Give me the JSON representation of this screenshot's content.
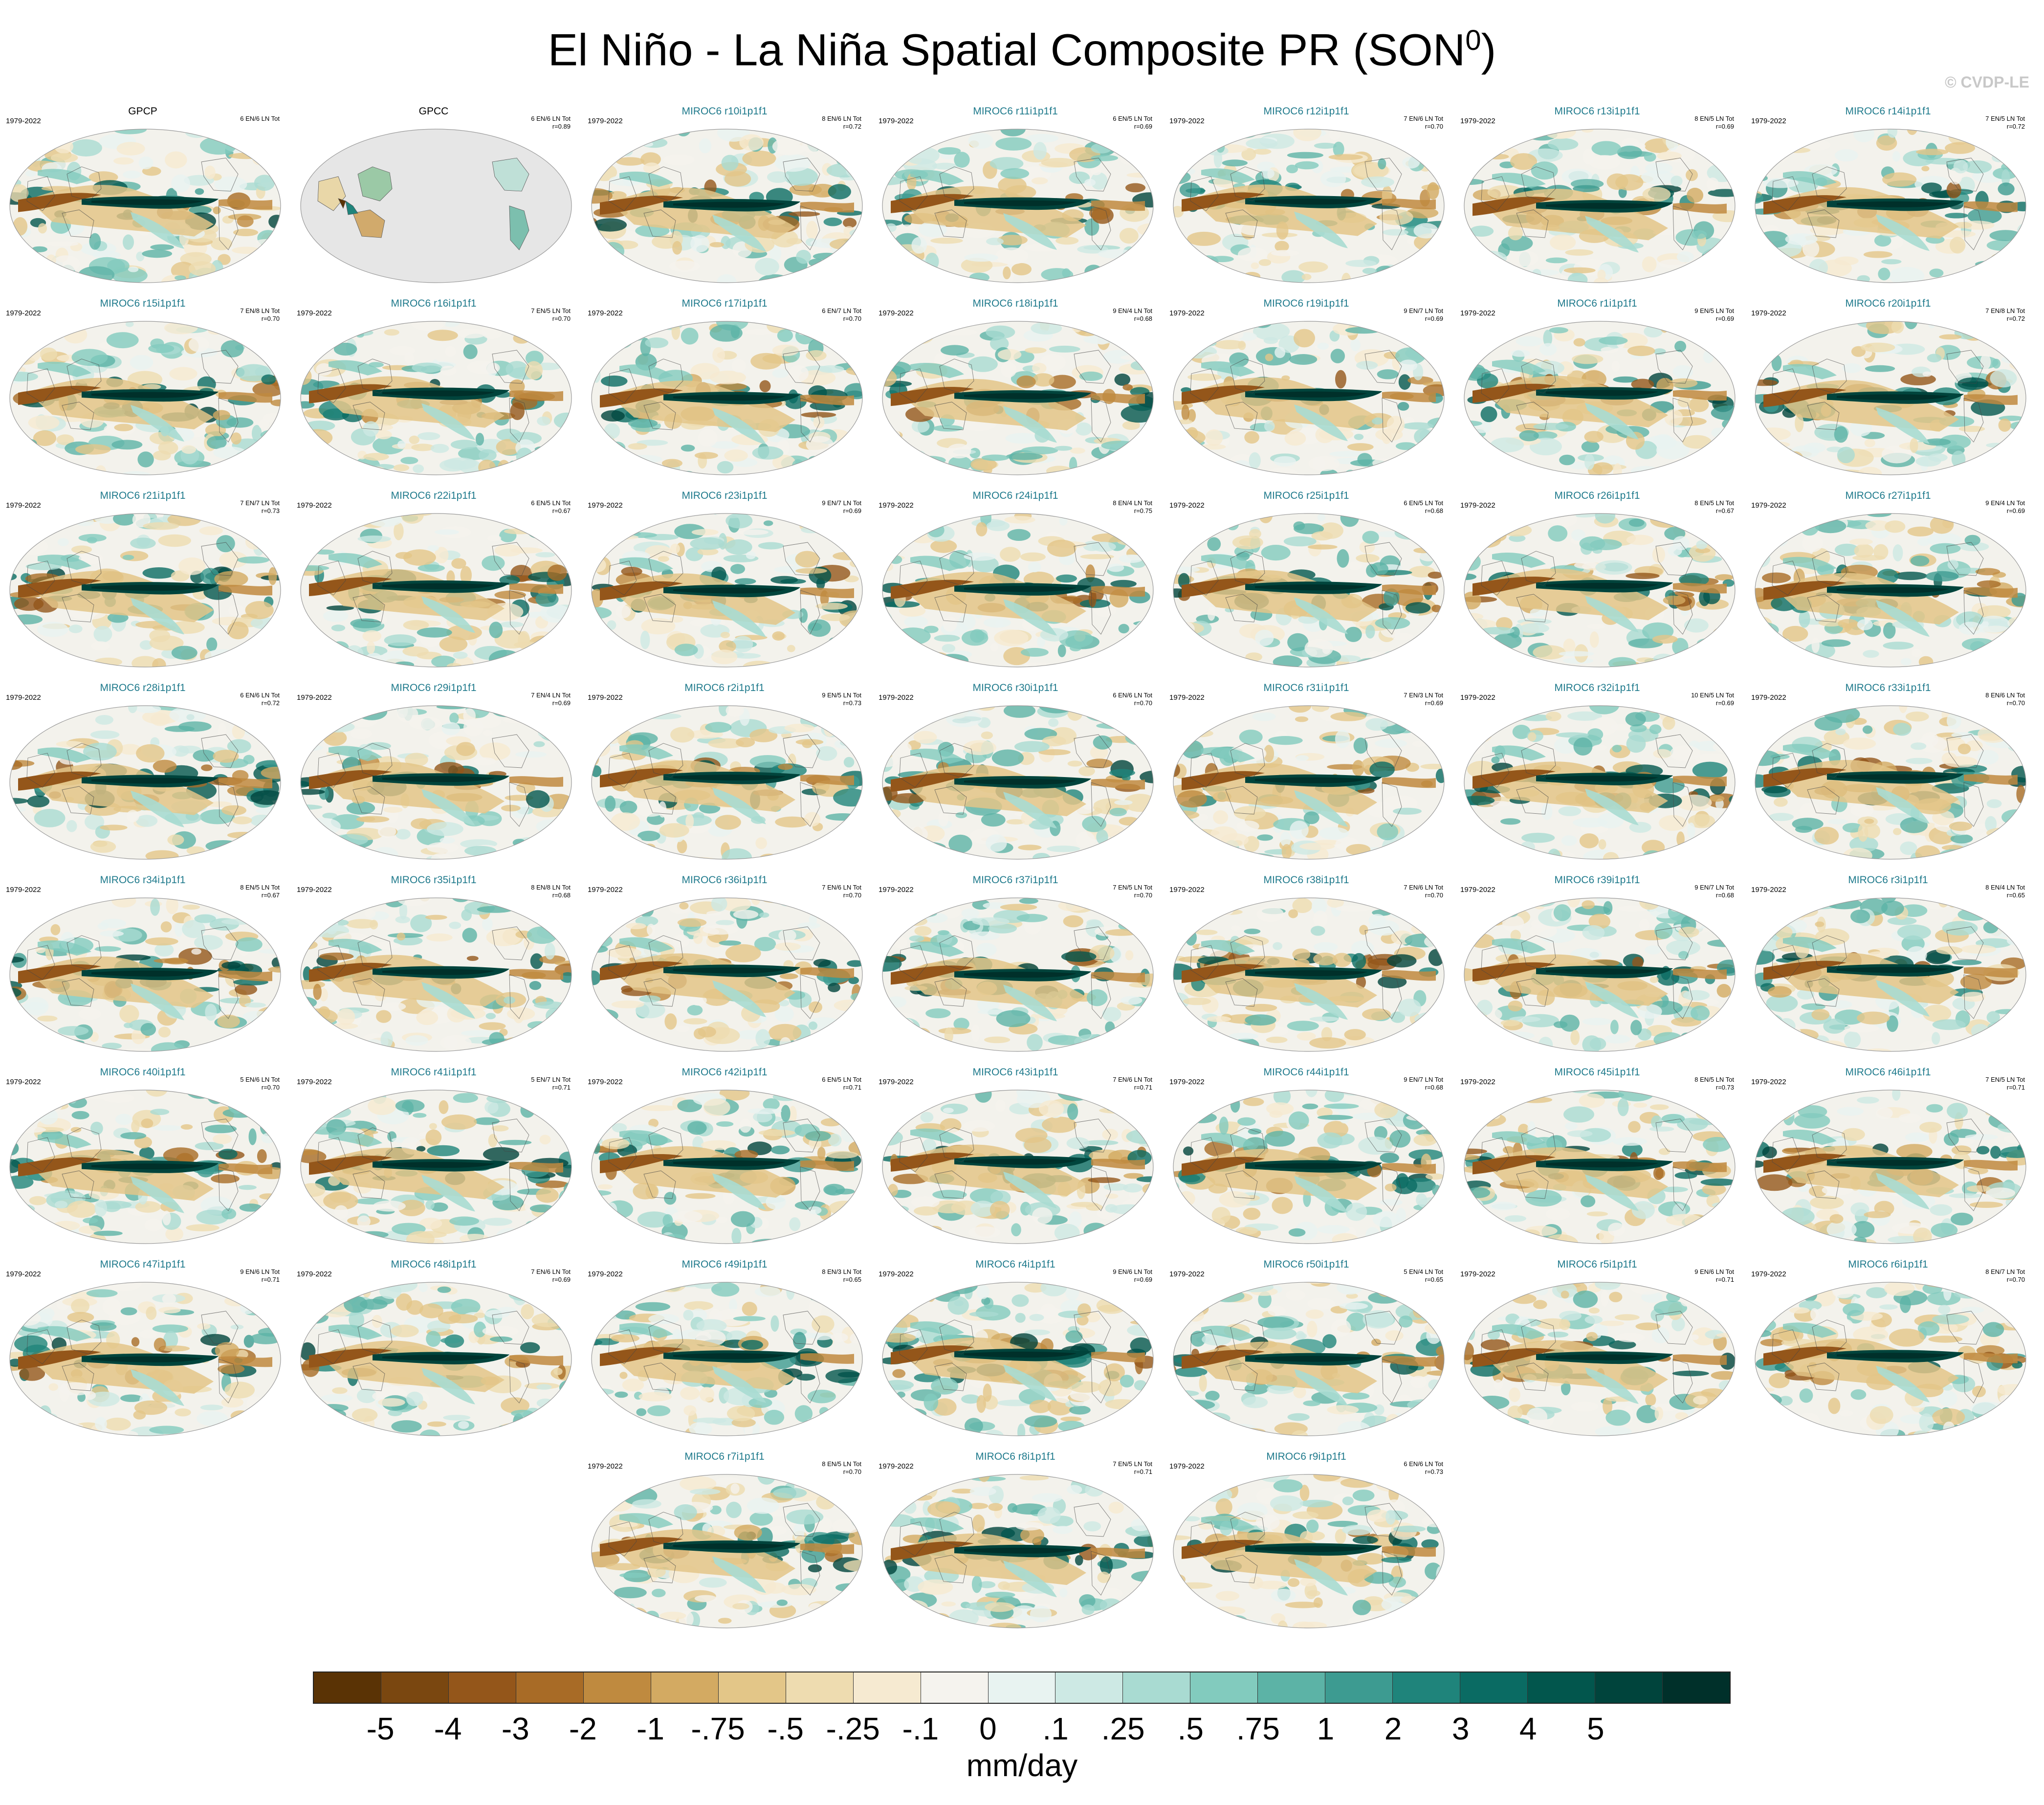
{
  "title": "El Niño - La Niña Spatial Composite PR (SON",
  "title_superscript": "0",
  "title_close": ")",
  "credit": "© CVDP-LE",
  "colors": {
    "model_title": "#1f7a8c",
    "obs_title": "#000000",
    "ocean_wet": "#0d6b62",
    "ocean_dry": "#9a6424",
    "land_missing": "#e6e6e6"
  },
  "panels": [
    {
      "title": "GPCP",
      "period": "1979-2022",
      "count": "6 EN/6 LN Tot",
      "corr": "",
      "obs": true,
      "gray": false
    },
    {
      "title": "GPCC",
      "period": "",
      "count": "6 EN/6 LN Tot",
      "corr": "r=0.89",
      "obs": true,
      "gray": true
    },
    {
      "title": "MIROC6 r10i1p1f1",
      "period": "1979-2022",
      "count": "8 EN/6 LN Tot",
      "corr": "r=0.72"
    },
    {
      "title": "MIROC6 r11i1p1f1",
      "period": "1979-2022",
      "count": "6 EN/5 LN Tot",
      "corr": "r=0.69"
    },
    {
      "title": "MIROC6 r12i1p1f1",
      "period": "1979-2022",
      "count": "7 EN/6 LN Tot",
      "corr": "r=0.70"
    },
    {
      "title": "MIROC6 r13i1p1f1",
      "period": "1979-2022",
      "count": "8 EN/5 LN Tot",
      "corr": "r=0.69"
    },
    {
      "title": "MIROC6 r14i1p1f1",
      "period": "1979-2022",
      "count": "7 EN/5 LN Tot",
      "corr": "r=0.72"
    },
    {
      "title": "MIROC6 r15i1p1f1",
      "period": "1979-2022",
      "count": "7 EN/8 LN Tot",
      "corr": "r=0.70"
    },
    {
      "title": "MIROC6 r16i1p1f1",
      "period": "1979-2022",
      "count": "7 EN/5 LN Tot",
      "corr": "r=0.70"
    },
    {
      "title": "MIROC6 r17i1p1f1",
      "period": "1979-2022",
      "count": "6 EN/7 LN Tot",
      "corr": "r=0.70"
    },
    {
      "title": "MIROC6 r18i1p1f1",
      "period": "1979-2022",
      "count": "9 EN/4 LN Tot",
      "corr": "r=0.68"
    },
    {
      "title": "MIROC6 r19i1p1f1",
      "period": "1979-2022",
      "count": "9 EN/7 LN Tot",
      "corr": "r=0.69"
    },
    {
      "title": "MIROC6 r1i1p1f1",
      "period": "1979-2022",
      "count": "9 EN/5 LN Tot",
      "corr": "r=0.69"
    },
    {
      "title": "MIROC6 r20i1p1f1",
      "period": "1979-2022",
      "count": "7 EN/8 LN Tot",
      "corr": "r=0.72"
    },
    {
      "title": "MIROC6 r21i1p1f1",
      "period": "1979-2022",
      "count": "7 EN/7 LN Tot",
      "corr": "r=0.73"
    },
    {
      "title": "MIROC6 r22i1p1f1",
      "period": "1979-2022",
      "count": "6 EN/5 LN Tot",
      "corr": "r=0.67"
    },
    {
      "title": "MIROC6 r23i1p1f1",
      "period": "1979-2022",
      "count": "9 EN/7 LN Tot",
      "corr": "r=0.69"
    },
    {
      "title": "MIROC6 r24i1p1f1",
      "period": "1979-2022",
      "count": "8 EN/4 LN Tot",
      "corr": "r=0.75"
    },
    {
      "title": "MIROC6 r25i1p1f1",
      "period": "1979-2022",
      "count": "6 EN/5 LN Tot",
      "corr": "r=0.68"
    },
    {
      "title": "MIROC6 r26i1p1f1",
      "period": "1979-2022",
      "count": "8 EN/5 LN Tot",
      "corr": "r=0.67"
    },
    {
      "title": "MIROC6 r27i1p1f1",
      "period": "1979-2022",
      "count": "9 EN/4 LN Tot",
      "corr": "r=0.69"
    },
    {
      "title": "MIROC6 r28i1p1f1",
      "period": "1979-2022",
      "count": "6 EN/6 LN Tot",
      "corr": "r=0.72"
    },
    {
      "title": "MIROC6 r29i1p1f1",
      "period": "1979-2022",
      "count": "7 EN/4 LN Tot",
      "corr": "r=0.69"
    },
    {
      "title": "MIROC6 r2i1p1f1",
      "period": "1979-2022",
      "count": "9 EN/5 LN Tot",
      "corr": "r=0.73"
    },
    {
      "title": "MIROC6 r30i1p1f1",
      "period": "1979-2022",
      "count": "6 EN/6 LN Tot",
      "corr": "r=0.70"
    },
    {
      "title": "MIROC6 r31i1p1f1",
      "period": "1979-2022",
      "count": "7 EN/3 LN Tot",
      "corr": "r=0.69"
    },
    {
      "title": "MIROC6 r32i1p1f1",
      "period": "1979-2022",
      "count": "10 EN/5 LN Tot",
      "corr": "r=0.69"
    },
    {
      "title": "MIROC6 r33i1p1f1",
      "period": "1979-2022",
      "count": "8 EN/6 LN Tot",
      "corr": "r=0.70"
    },
    {
      "title": "MIROC6 r34i1p1f1",
      "period": "1979-2022",
      "count": "8 EN/5 LN Tot",
      "corr": "r=0.67"
    },
    {
      "title": "MIROC6 r35i1p1f1",
      "period": "1979-2022",
      "count": "8 EN/8 LN Tot",
      "corr": "r=0.68"
    },
    {
      "title": "MIROC6 r36i1p1f1",
      "period": "1979-2022",
      "count": "7 EN/6 LN Tot",
      "corr": "r=0.70"
    },
    {
      "title": "MIROC6 r37i1p1f1",
      "period": "1979-2022",
      "count": "7 EN/5 LN Tot",
      "corr": "r=0.70"
    },
    {
      "title": "MIROC6 r38i1p1f1",
      "period": "1979-2022",
      "count": "7 EN/6 LN Tot",
      "corr": "r=0.70"
    },
    {
      "title": "MIROC6 r39i1p1f1",
      "period": "1979-2022",
      "count": "9 EN/7 LN Tot",
      "corr": "r=0.68"
    },
    {
      "title": "MIROC6 r3i1p1f1",
      "period": "1979-2022",
      "count": "8 EN/4 LN Tot",
      "corr": "r=0.65"
    },
    {
      "title": "MIROC6 r40i1p1f1",
      "period": "1979-2022",
      "count": "5 EN/6 LN Tot",
      "corr": "r=0.70"
    },
    {
      "title": "MIROC6 r41i1p1f1",
      "period": "1979-2022",
      "count": "5 EN/7 LN Tot",
      "corr": "r=0.71"
    },
    {
      "title": "MIROC6 r42i1p1f1",
      "period": "1979-2022",
      "count": "6 EN/5 LN Tot",
      "corr": "r=0.71"
    },
    {
      "title": "MIROC6 r43i1p1f1",
      "period": "1979-2022",
      "count": "7 EN/6 LN Tot",
      "corr": "r=0.71"
    },
    {
      "title": "MIROC6 r44i1p1f1",
      "period": "1979-2022",
      "count": "9 EN/7 LN Tot",
      "corr": "r=0.68"
    },
    {
      "title": "MIROC6 r45i1p1f1",
      "period": "1979-2022",
      "count": "8 EN/5 LN Tot",
      "corr": "r=0.73"
    },
    {
      "title": "MIROC6 r46i1p1f1",
      "period": "1979-2022",
      "count": "7 EN/5 LN Tot",
      "corr": "r=0.71"
    },
    {
      "title": "MIROC6 r47i1p1f1",
      "period": "1979-2022",
      "count": "9 EN/6 LN Tot",
      "corr": "r=0.71"
    },
    {
      "title": "MIROC6 r48i1p1f1",
      "period": "1979-2022",
      "count": "7 EN/6 LN Tot",
      "corr": "r=0.69"
    },
    {
      "title": "MIROC6 r49i1p1f1",
      "period": "1979-2022",
      "count": "8 EN/3 LN Tot",
      "corr": "r=0.65"
    },
    {
      "title": "MIROC6 r4i1p1f1",
      "period": "1979-2022",
      "count": "9 EN/6 LN Tot",
      "corr": "r=0.69"
    },
    {
      "title": "MIROC6 r50i1p1f1",
      "period": "1979-2022",
      "count": "5 EN/4 LN Tot",
      "corr": "r=0.65"
    },
    {
      "title": "MIROC6 r5i1p1f1",
      "period": "1979-2022",
      "count": "9 EN/6 LN Tot",
      "corr": "r=0.71"
    },
    {
      "title": "MIROC6 r6i1p1f1",
      "period": "1979-2022",
      "count": "8 EN/7 LN Tot",
      "corr": "r=0.70"
    },
    {
      "title": "MIROC6 r7i1p1f1",
      "period": "1979-2022",
      "count": "8 EN/5 LN Tot",
      "corr": "r=0.70"
    },
    {
      "title": "MIROC6 r8i1p1f1",
      "period": "1979-2022",
      "count": "7 EN/5 LN Tot",
      "corr": "r=0.71"
    },
    {
      "title": "MIROC6 r9i1p1f1",
      "period": "1979-2022",
      "count": "6 EN/6 LN Tot",
      "corr": "r=0.73"
    }
  ],
  "colorbar": {
    "colors": [
      "#5a3305",
      "#7a4710",
      "#94561a",
      "#a86b26",
      "#bf8a3f",
      "#d3aa62",
      "#e3c688",
      "#eedcb0",
      "#f6ead1",
      "#f5f3ee",
      "#e8f3f1",
      "#cde9e4",
      "#a9dbd2",
      "#82cbbe",
      "#5cb3a6",
      "#3d9b91",
      "#1f847b",
      "#0a6b63",
      "#02564d",
      "#00443c",
      "#00302a"
    ],
    "labels": [
      "-5",
      "-4",
      "-3",
      "-2",
      "-1",
      "-.75",
      "-.5",
      "-.25",
      "-.1",
      "0",
      ".1",
      ".25",
      ".5",
      ".75",
      "1",
      "2",
      "3",
      "4",
      "5"
    ],
    "units": "mm/day"
  }
}
